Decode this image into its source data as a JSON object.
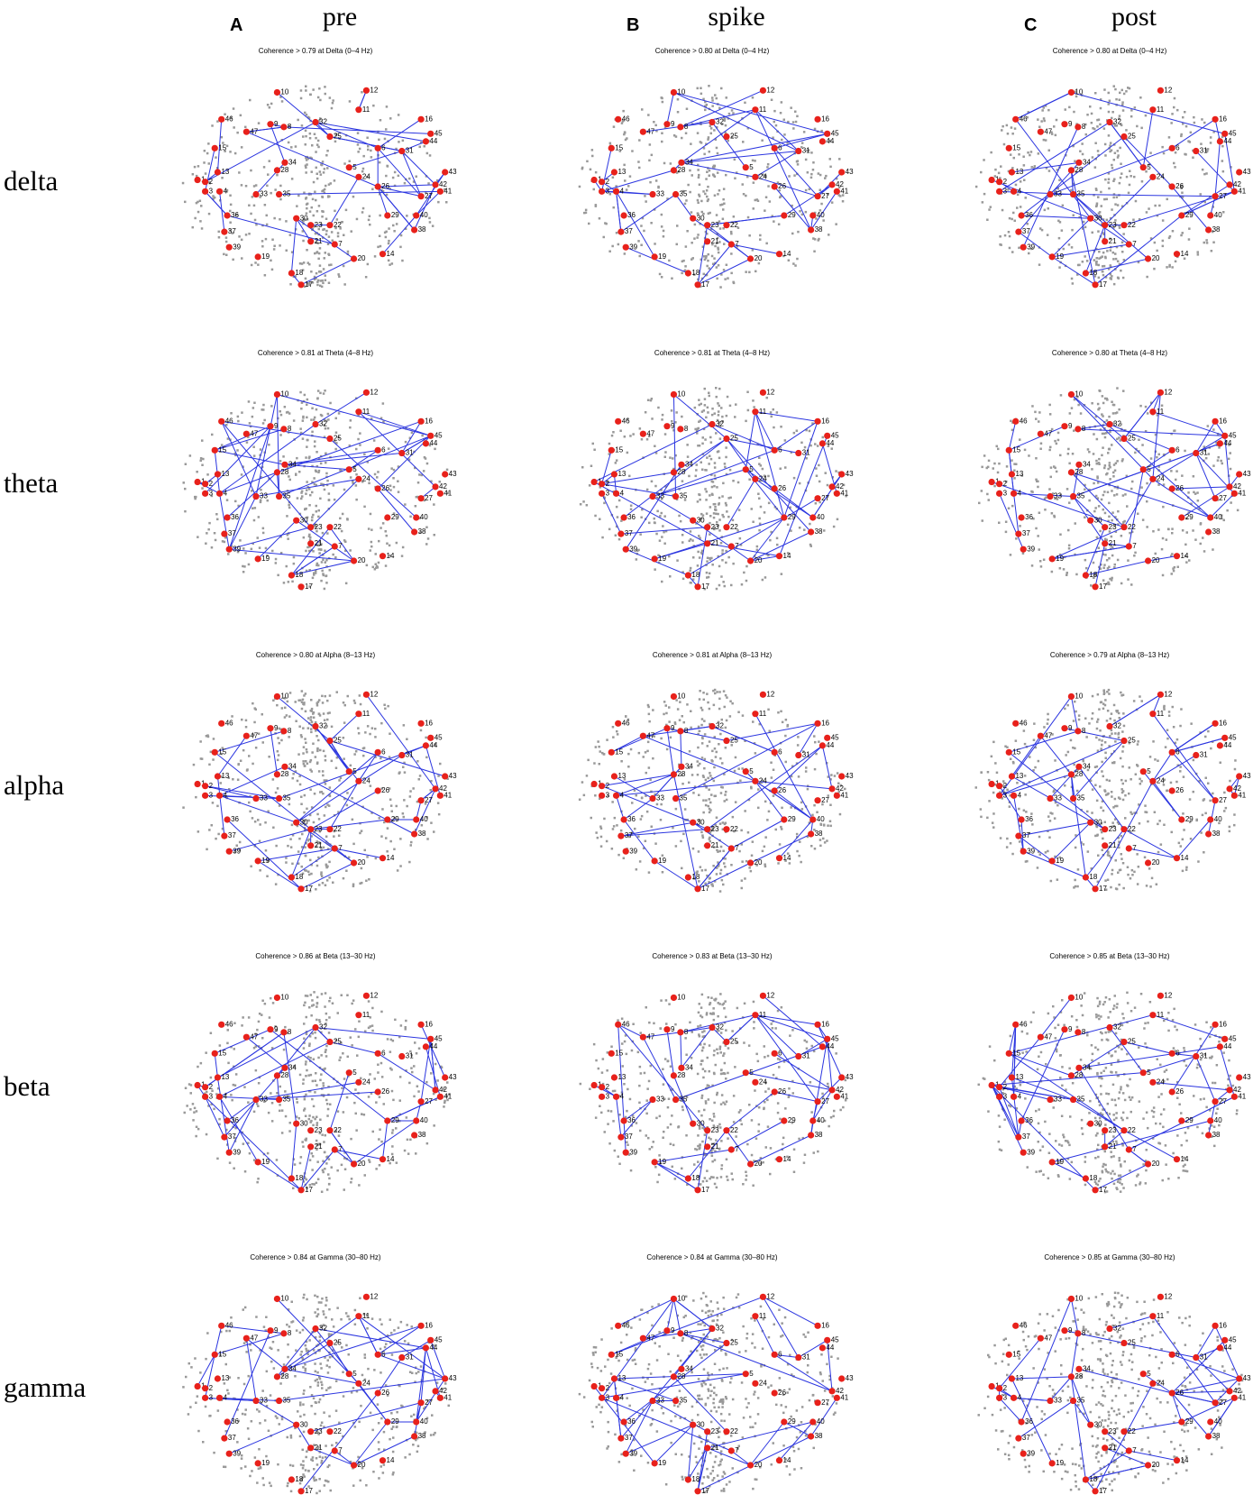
{
  "columns": [
    {
      "letter": "A",
      "label": "pre"
    },
    {
      "letter": "B",
      "label": "spike"
    },
    {
      "letter": "C",
      "label": "post"
    }
  ],
  "rows": [
    {
      "label": "delta",
      "titles": [
        "Coherence > 0.79 at Delta (0–4 Hz)",
        "Coherence > 0.80 at Delta (0–4 Hz)",
        "Coherence > 0.80 at Delta (0–4 Hz)"
      ]
    },
    {
      "label": "theta",
      "titles": [
        "Coherence > 0.81 at Theta (4–8 Hz)",
        "Coherence > 0.81 at Theta (4–8 Hz)",
        "Coherence > 0.80 at Theta (4–8 Hz)"
      ]
    },
    {
      "label": "alpha",
      "titles": [
        "Coherence > 0.80 at Alpha (8–13 Hz)",
        "Coherence > 0.81 at Alpha (8–13 Hz)",
        "Coherence > 0.79 at Alpha (8–13 Hz)"
      ]
    },
    {
      "label": "beta",
      "titles": [
        "Coherence > 0.86 at Beta (13–30 Hz)",
        "Coherence > 0.83 at Beta (13–30 Hz)",
        "Coherence > 0.85 at Beta (13–30 Hz)"
      ]
    },
    {
      "label": "gamma",
      "titles": [
        "Coherence > 0.84 at Gamma (30–80 Hz)",
        "Coherence > 0.84 at Gamma (30–80 Hz)",
        "Coherence > 0.85 at Gamma (30–80 Hz)"
      ]
    }
  ],
  "nodes": [
    10,
    12,
    11,
    46,
    47,
    9,
    8,
    32,
    25,
    16,
    45,
    44,
    15,
    31,
    6,
    34,
    13,
    28,
    43,
    1,
    42,
    3,
    4,
    35,
    33,
    26,
    27,
    41,
    40,
    29,
    30,
    23,
    22,
    36,
    37,
    38,
    39,
    21,
    7,
    14,
    19,
    18,
    17,
    20,
    5,
    2,
    24
  ]
}
